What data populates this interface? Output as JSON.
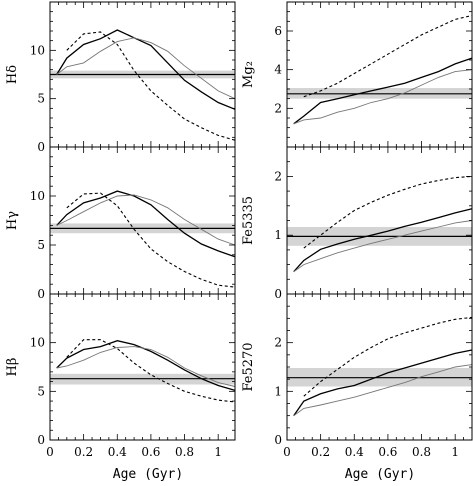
{
  "chart_data": [
    {
      "type": "line",
      "ylabel": "Hδ",
      "ylim": [
        0,
        15
      ],
      "yticks": [
        0,
        5,
        10
      ],
      "xlim": [
        0,
        1.1
      ],
      "band": {
        "center": 7.5,
        "low": 7.1,
        "high": 7.9
      },
      "series": [
        {
          "style": "solid-thick",
          "x": [
            0.04,
            0.1,
            0.2,
            0.3,
            0.4,
            0.5,
            0.6,
            0.7,
            0.8,
            0.9,
            1.0,
            1.1
          ],
          "y": [
            7.5,
            9.2,
            10.6,
            11.2,
            12.1,
            11.3,
            10.5,
            8.7,
            6.9,
            5.7,
            4.6,
            3.9
          ]
        },
        {
          "style": "solid-thin",
          "x": [
            0.04,
            0.1,
            0.2,
            0.3,
            0.4,
            0.5,
            0.6,
            0.7,
            0.8,
            0.9,
            1.0,
            1.1
          ],
          "y": [
            7.5,
            8.3,
            8.7,
            9.9,
            10.9,
            11.3,
            10.8,
            9.9,
            8.4,
            7.1,
            5.8,
            5.0
          ]
        },
        {
          "style": "dashed",
          "x": [
            0.1,
            0.2,
            0.3,
            0.4,
            0.5,
            0.6,
            0.7,
            0.8,
            0.9,
            1.0,
            1.1
          ],
          "y": [
            10.0,
            11.7,
            11.9,
            10.6,
            7.9,
            5.8,
            4.3,
            2.9,
            2.0,
            1.2,
            0.7
          ]
        }
      ]
    },
    {
      "type": "line",
      "ylabel": "Mg₂",
      "ylim": [
        0,
        7.5
      ],
      "yticks": [
        2,
        4,
        6
      ],
      "xlim": [
        0,
        1.1
      ],
      "band": {
        "center": 2.75,
        "low": 2.5,
        "high": 3.05
      },
      "series": [
        {
          "style": "solid-thick",
          "x": [
            0.04,
            0.1,
            0.2,
            0.3,
            0.4,
            0.5,
            0.6,
            0.7,
            0.8,
            0.9,
            1.0,
            1.1
          ],
          "y": [
            1.2,
            1.6,
            2.3,
            2.5,
            2.7,
            2.9,
            3.1,
            3.3,
            3.6,
            3.9,
            4.3,
            4.6
          ]
        },
        {
          "style": "solid-thin",
          "x": [
            0.04,
            0.1,
            0.2,
            0.3,
            0.4,
            0.5,
            0.6,
            0.7,
            0.8,
            0.9,
            1.0,
            1.1
          ],
          "y": [
            1.2,
            1.4,
            1.5,
            1.8,
            2.0,
            2.3,
            2.5,
            2.8,
            3.2,
            3.6,
            3.9,
            4.0
          ]
        },
        {
          "style": "dashed",
          "x": [
            0.1,
            0.2,
            0.3,
            0.4,
            0.5,
            0.6,
            0.7,
            0.8,
            0.9,
            1.0,
            1.1
          ],
          "y": [
            2.6,
            2.9,
            3.3,
            3.8,
            4.3,
            4.8,
            5.3,
            5.8,
            6.2,
            6.6,
            6.8
          ]
        }
      ]
    },
    {
      "type": "line",
      "ylabel": "Hγ",
      "ylim": [
        0,
        15
      ],
      "yticks": [
        0,
        5,
        10
      ],
      "xlim": [
        0,
        1.1
      ],
      "band": {
        "center": 6.7,
        "low": 6.2,
        "high": 7.2
      },
      "series": [
        {
          "style": "solid-thick",
          "x": [
            0.04,
            0.1,
            0.2,
            0.3,
            0.4,
            0.5,
            0.6,
            0.7,
            0.8,
            0.9,
            1.0,
            1.1
          ],
          "y": [
            7.0,
            8.1,
            9.3,
            9.8,
            10.5,
            10.0,
            9.1,
            7.6,
            6.2,
            5.1,
            4.4,
            3.8
          ]
        },
        {
          "style": "solid-thin",
          "x": [
            0.04,
            0.1,
            0.2,
            0.3,
            0.4,
            0.5,
            0.6,
            0.7,
            0.8,
            0.9,
            1.0,
            1.1
          ],
          "y": [
            7.0,
            7.5,
            8.4,
            9.3,
            10.0,
            10.1,
            9.6,
            8.8,
            7.6,
            6.6,
            5.6,
            5.0
          ]
        },
        {
          "style": "dashed",
          "x": [
            0.1,
            0.2,
            0.3,
            0.4,
            0.5,
            0.6,
            0.7,
            0.8,
            0.9,
            1.0,
            1.1
          ],
          "y": [
            8.8,
            10.2,
            10.3,
            9.0,
            6.6,
            4.6,
            3.3,
            2.3,
            1.5,
            0.9,
            0.7
          ]
        }
      ]
    },
    {
      "type": "line",
      "ylabel": "Fe5335",
      "ylim": [
        0,
        2.5
      ],
      "yticks": [
        0,
        1,
        2
      ],
      "xlim": [
        0,
        1.1
      ],
      "band": {
        "center": 0.98,
        "low": 0.82,
        "high": 1.14
      },
      "series": [
        {
          "style": "solid-thick",
          "x": [
            0.04,
            0.1,
            0.2,
            0.3,
            0.4,
            0.5,
            0.6,
            0.7,
            0.8,
            0.9,
            1.0,
            1.1
          ],
          "y": [
            0.38,
            0.57,
            0.76,
            0.85,
            0.93,
            1.0,
            1.07,
            1.15,
            1.22,
            1.3,
            1.38,
            1.45
          ]
        },
        {
          "style": "solid-thin",
          "x": [
            0.04,
            0.1,
            0.2,
            0.3,
            0.4,
            0.5,
            0.6,
            0.7,
            0.8,
            0.9,
            1.0,
            1.1
          ],
          "y": [
            0.38,
            0.5,
            0.6,
            0.7,
            0.78,
            0.86,
            0.93,
            1.0,
            1.07,
            1.14,
            1.21,
            1.25
          ]
        },
        {
          "style": "dashed",
          "x": [
            0.1,
            0.2,
            0.3,
            0.4,
            0.5,
            0.6,
            0.7,
            0.8,
            0.9,
            1.0,
            1.1
          ],
          "y": [
            0.78,
            1.0,
            1.22,
            1.42,
            1.56,
            1.68,
            1.78,
            1.87,
            1.93,
            1.98,
            2.0
          ]
        }
      ]
    },
    {
      "type": "line",
      "ylabel": "Hβ",
      "ylim": [
        0,
        15
      ],
      "yticks": [
        0,
        5,
        10
      ],
      "xlim": [
        0,
        1.1
      ],
      "band": {
        "center": 6.3,
        "low": 5.7,
        "high": 6.8
      },
      "series": [
        {
          "style": "solid-thick",
          "x": [
            0.04,
            0.1,
            0.2,
            0.3,
            0.4,
            0.5,
            0.6,
            0.7,
            0.8,
            0.9,
            1.0,
            1.1
          ],
          "y": [
            7.4,
            8.4,
            9.3,
            9.6,
            10.2,
            9.8,
            9.1,
            8.2,
            7.2,
            6.3,
            5.6,
            5.1
          ]
        },
        {
          "style": "solid-thin",
          "x": [
            0.04,
            0.1,
            0.2,
            0.3,
            0.4,
            0.5,
            0.6,
            0.7,
            0.8,
            0.9,
            1.0,
            1.1
          ],
          "y": [
            7.4,
            7.6,
            8.2,
            9.0,
            9.5,
            9.6,
            9.3,
            8.5,
            7.4,
            6.6,
            5.9,
            5.5
          ]
        },
        {
          "style": "dashed",
          "x": [
            0.1,
            0.2,
            0.3,
            0.4,
            0.5,
            0.6,
            0.7,
            0.8,
            0.9,
            1.0,
            1.1
          ],
          "y": [
            8.5,
            10.3,
            10.3,
            9.4,
            7.9,
            6.7,
            5.8,
            5.0,
            4.5,
            4.1,
            3.9
          ]
        }
      ]
    },
    {
      "type": "line",
      "ylabel": "Fe5270",
      "ylim": [
        0,
        3
      ],
      "yticks": [
        0,
        1,
        2
      ],
      "xlim": [
        0,
        1.1
      ],
      "band": {
        "center": 1.28,
        "low": 1.1,
        "high": 1.48
      },
      "series": [
        {
          "style": "solid-thick",
          "x": [
            0.04,
            0.1,
            0.2,
            0.3,
            0.4,
            0.5,
            0.6,
            0.7,
            0.8,
            0.9,
            1.0,
            1.1
          ],
          "y": [
            0.5,
            0.8,
            0.95,
            1.05,
            1.12,
            1.25,
            1.38,
            1.48,
            1.58,
            1.68,
            1.78,
            1.85
          ]
        },
        {
          "style": "solid-thin",
          "x": [
            0.04,
            0.1,
            0.2,
            0.3,
            0.4,
            0.5,
            0.6,
            0.7,
            0.8,
            0.9,
            1.0,
            1.1
          ],
          "y": [
            0.5,
            0.65,
            0.72,
            0.8,
            0.88,
            0.98,
            1.08,
            1.18,
            1.3,
            1.4,
            1.5,
            1.55
          ]
        },
        {
          "style": "dashed",
          "x": [
            0.1,
            0.2,
            0.3,
            0.4,
            0.5,
            0.6,
            0.7,
            0.8,
            0.9,
            1.0,
            1.1
          ],
          "y": [
            0.9,
            1.2,
            1.45,
            1.7,
            1.9,
            2.08,
            2.2,
            2.3,
            2.4,
            2.48,
            2.52
          ]
        }
      ]
    }
  ],
  "xaxis": {
    "label": "Age (Gyr)",
    "ticks": [
      "0",
      "0.2",
      "0.4",
      "0.6",
      "0.8",
      "1"
    ]
  }
}
